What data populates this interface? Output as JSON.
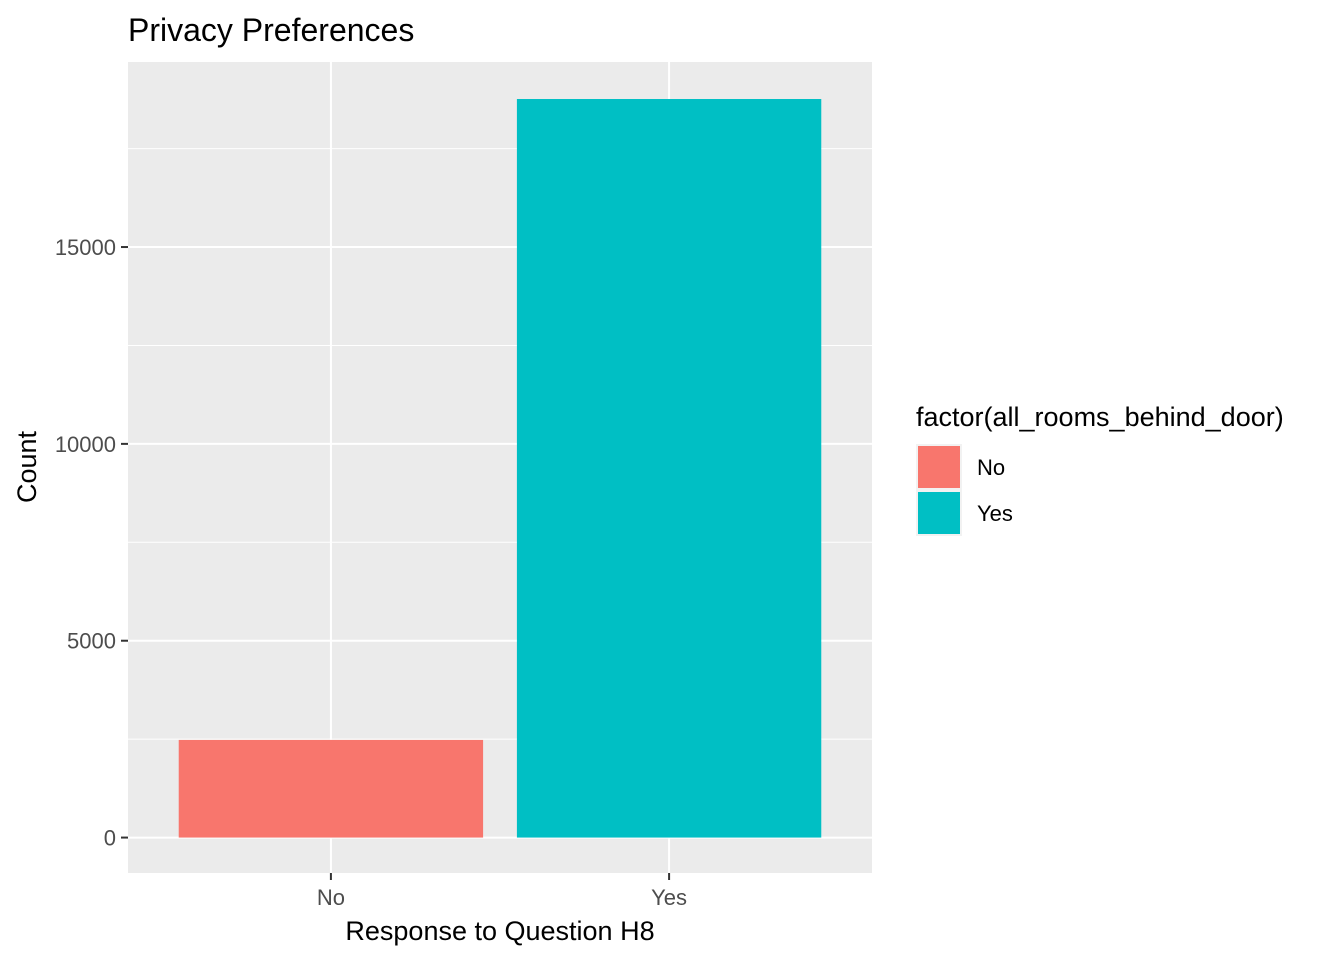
{
  "chart_data": {
    "type": "bar",
    "title": "Privacy Preferences",
    "xlabel": "Response to Question H8",
    "ylabel": "Count",
    "categories": [
      "No",
      "Yes"
    ],
    "values": [
      2480,
      18760
    ],
    "colors": [
      "#F8766D",
      "#00BFC4"
    ],
    "ylim": [
      -900,
      19700
    ],
    "yticks": [
      0,
      5000,
      10000,
      15000
    ],
    "ytick_labels": [
      "0",
      "5000",
      "10000",
      "15000"
    ],
    "grid": true,
    "legend": {
      "title": "factor(all_rooms_behind_door)",
      "position": "right",
      "entries": [
        {
          "label": "No",
          "color": "#F8766D"
        },
        {
          "label": "Yes",
          "color": "#00BFC4"
        }
      ]
    },
    "panel_background": "#EBEBEB",
    "grid_color": "#FFFFFF"
  }
}
